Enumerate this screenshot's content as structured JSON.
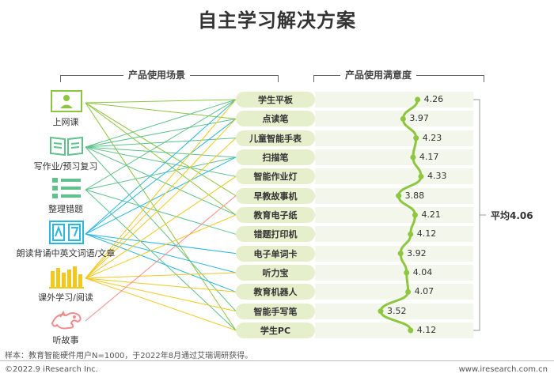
{
  "title": "自主学习解决方案",
  "sections": {
    "scenes_title": "产品使用场景",
    "satisfaction_title": "产品使用满意度"
  },
  "scenes": [
    {
      "label": "上网课",
      "icon": "online-class-icon"
    },
    {
      "label": "写作业/预习复习",
      "icon": "homework-book-icon"
    },
    {
      "label": "整理错题",
      "icon": "mistake-list-icon"
    },
    {
      "label": "朗读背诵中英文词语/文章",
      "icon": "bilingual-reading-icon"
    },
    {
      "label": "课外学习/阅读",
      "icon": "bookshelf-icon"
    },
    {
      "label": "听故事",
      "icon": "story-dragon-icon"
    }
  ],
  "links": [
    {
      "scene": 0,
      "product": 0,
      "color": "#8dc63f"
    },
    {
      "scene": 0,
      "product": 1,
      "color": "#8dc63f"
    },
    {
      "scene": 0,
      "product": 5,
      "color": "#8dc63f"
    },
    {
      "scene": 0,
      "product": 6,
      "color": "#8dc63f"
    },
    {
      "scene": 0,
      "product": 12,
      "color": "#8dc63f"
    },
    {
      "scene": 1,
      "product": 0,
      "color": "#5ec28a"
    },
    {
      "scene": 1,
      "product": 1,
      "color": "#5ec28a"
    },
    {
      "scene": 1,
      "product": 2,
      "color": "#5ec28a"
    },
    {
      "scene": 1,
      "product": 3,
      "color": "#5ec28a"
    },
    {
      "scene": 1,
      "product": 4,
      "color": "#5ec28a"
    },
    {
      "scene": 1,
      "product": 6,
      "color": "#5ec28a"
    },
    {
      "scene": 1,
      "product": 11,
      "color": "#5ec28a"
    },
    {
      "scene": 2,
      "product": 0,
      "color": "#5ec28a"
    },
    {
      "scene": 2,
      "product": 3,
      "color": "#5ec28a"
    },
    {
      "scene": 2,
      "product": 7,
      "color": "#5ec28a"
    },
    {
      "scene": 2,
      "product": 12,
      "color": "#5ec28a"
    },
    {
      "scene": 3,
      "product": 0,
      "color": "#2ab7e0"
    },
    {
      "scene": 3,
      "product": 1,
      "color": "#2ab7e0"
    },
    {
      "scene": 3,
      "product": 3,
      "color": "#2ab7e0"
    },
    {
      "scene": 3,
      "product": 8,
      "color": "#2ab7e0"
    },
    {
      "scene": 3,
      "product": 9,
      "color": "#2ab7e0"
    },
    {
      "scene": 3,
      "product": 10,
      "color": "#2ab7e0"
    },
    {
      "scene": 4,
      "product": 0,
      "color": "#f2c81d"
    },
    {
      "scene": 4,
      "product": 1,
      "color": "#f2c81d"
    },
    {
      "scene": 4,
      "product": 2,
      "color": "#f2c81d"
    },
    {
      "scene": 4,
      "product": 4,
      "color": "#f2c81d"
    },
    {
      "scene": 4,
      "product": 6,
      "color": "#f2c81d"
    },
    {
      "scene": 4,
      "product": 9,
      "color": "#f2c81d"
    },
    {
      "scene": 4,
      "product": 10,
      "color": "#f2c81d"
    },
    {
      "scene": 4,
      "product": 11,
      "color": "#f2c81d"
    },
    {
      "scene": 4,
      "product": 12,
      "color": "#f2c81d"
    },
    {
      "scene": 5,
      "product": 5,
      "color": "#f28b8b"
    }
  ],
  "chart_data": {
    "type": "line",
    "categories": [
      "学生平板",
      "点读笔",
      "儿童智能手表",
      "扫描笔",
      "智能作业灯",
      "早教故事机",
      "教育电子纸",
      "错题打印机",
      "电子单词卡",
      "听力宝",
      "教育机器人",
      "智能手写笔",
      "学生PC"
    ],
    "values": [
      4.26,
      3.97,
      4.23,
      4.17,
      4.33,
      3.88,
      4.21,
      4.12,
      3.92,
      4.04,
      4.07,
      3.52,
      4.12
    ],
    "value_labels": [
      "4.26",
      "3.97",
      "4.23",
      "4.17",
      "4.33",
      "3.88",
      "4.21",
      "4.12",
      "3.92",
      "4.04",
      "4.07",
      "3.52",
      "4.12"
    ],
    "average_label": "平均4.06",
    "line_color": "#8dc63f"
  },
  "footnote": "样本：教育智能硬件用户N=1000，于2022年8月通过艾瑞调研获得。",
  "copyright": "©2022.9 iResearch Inc.",
  "website": "www.iresearch.com.cn"
}
